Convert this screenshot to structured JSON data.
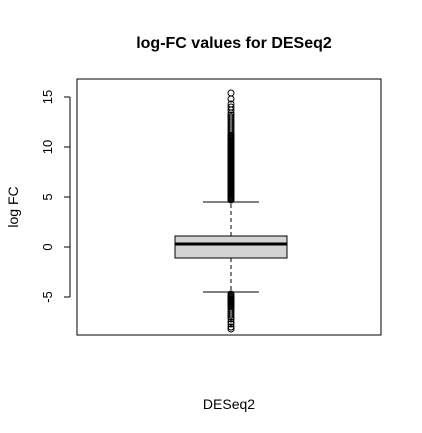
{
  "chart_data": {
    "type": "boxplot",
    "title": "log-FC values for DESeq2",
    "xlabel": "DESeq2",
    "ylabel": "log FC",
    "ylim": [
      -8.8,
      16.8
    ],
    "y_ticks": [
      -5,
      0,
      5,
      10,
      15
    ],
    "y_tick_labels": [
      "-5",
      "0",
      "5",
      "10",
      "15"
    ],
    "grid": false,
    "legend": "none",
    "series": [
      {
        "category": "DESeq2",
        "whisker_low": -4.5,
        "q1": -1.1,
        "median": 0.3,
        "q3": 1.1,
        "whisker_high": 4.5,
        "outliers": [
          -8.2,
          -8.0,
          -7.7,
          -7.5,
          -7.2,
          -7.0,
          -6.8,
          -6.6,
          -6.4,
          -6.2,
          -6.0,
          -5.9,
          -5.8,
          -5.7,
          -5.6,
          -5.5,
          -5.4,
          -5.3,
          -5.2,
          -5.1,
          -5.0,
          -4.9,
          -4.8,
          -4.7,
          4.7,
          4.8,
          4.9,
          5.0,
          5.1,
          5.2,
          5.3,
          5.4,
          5.5,
          5.6,
          5.7,
          5.8,
          5.9,
          6.0,
          6.1,
          6.2,
          6.3,
          6.4,
          6.5,
          6.6,
          6.7,
          6.8,
          6.9,
          7.0,
          7.1,
          7.2,
          7.3,
          7.4,
          7.5,
          7.6,
          7.7,
          7.8,
          7.9,
          8.0,
          8.1,
          8.2,
          8.3,
          8.4,
          8.5,
          8.6,
          8.7,
          8.8,
          8.9,
          9.0,
          9.1,
          9.2,
          9.3,
          9.4,
          9.5,
          9.6,
          9.7,
          9.8,
          9.9,
          10.0,
          10.1,
          10.2,
          10.3,
          10.4,
          10.5,
          10.6,
          10.7,
          10.8,
          10.9,
          11.0,
          11.1,
          11.2,
          11.4,
          11.6,
          11.8,
          12.0,
          12.2,
          12.4,
          12.6,
          12.8,
          13.0,
          13.2,
          13.4,
          13.7,
          14.0,
          14.3,
          14.8,
          15.4
        ]
      }
    ],
    "colors": {
      "box_fill": "#d3d3d3",
      "stroke": "#000000"
    }
  }
}
